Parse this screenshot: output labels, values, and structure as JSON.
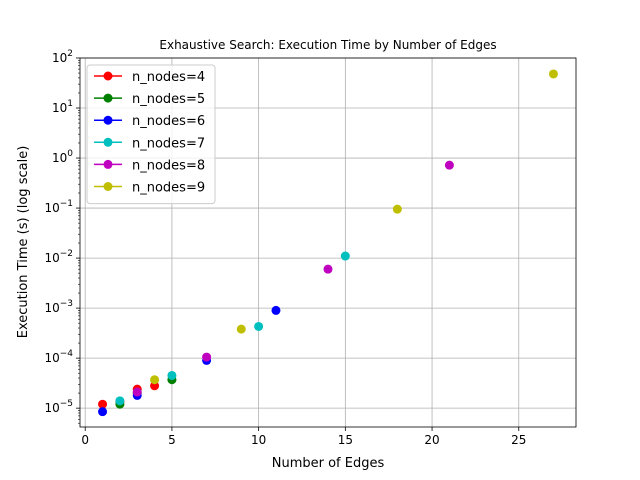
{
  "chart_data": {
    "type": "scatter",
    "title": "Exhaustive Search: Execution Time by Number of Edges",
    "xlabel": "Number of Edges",
    "ylabel": "Execution Time (s) (log scale)",
    "xlim": [
      -0.3,
      28.3
    ],
    "ylim": [
      4.2e-06,
      100.0
    ],
    "yscale": "log",
    "grid": true,
    "legend_position": "upper left",
    "xticks": [
      0,
      5,
      10,
      15,
      20,
      25
    ],
    "xtick_labels": [
      "0",
      "5",
      "10",
      "15",
      "20",
      "25"
    ],
    "yticks": [
      1e-05,
      0.0001,
      0.001,
      0.01,
      0.1,
      1.0,
      10.0,
      100.0
    ],
    "ytick_labels": [
      {
        "base": "10",
        "exp": "−5"
      },
      {
        "base": "10",
        "exp": "−4"
      },
      {
        "base": "10",
        "exp": "−3"
      },
      {
        "base": "10",
        "exp": "−2"
      },
      {
        "base": "10",
        "exp": "−1"
      },
      {
        "base": "10",
        "exp": "0"
      },
      {
        "base": "10",
        "exp": "1"
      },
      {
        "base": "10",
        "exp": "2"
      }
    ],
    "series": [
      {
        "name": "n_nodes=4",
        "color": "#ff0000",
        "points": [
          [
            1,
            1.2e-05
          ],
          [
            2,
            1.35e-05
          ],
          [
            3,
            2.4e-05
          ],
          [
            4,
            2.8e-05
          ]
        ]
      },
      {
        "name": "n_nodes=5",
        "color": "#008000",
        "points": [
          [
            2,
            1.2e-05
          ],
          [
            3,
            2e-05
          ],
          [
            5,
            3.7e-05
          ]
        ]
      },
      {
        "name": "n_nodes=6",
        "color": "#0000ff",
        "points": [
          [
            1,
            8.5e-06
          ],
          [
            3,
            1.8e-05
          ],
          [
            7,
            9e-05
          ],
          [
            11,
            0.0009
          ]
        ]
      },
      {
        "name": "n_nodes=7",
        "color": "#00bfbf",
        "points": [
          [
            2,
            1.4e-05
          ],
          [
            5,
            4.5e-05
          ],
          [
            10,
            0.00043
          ],
          [
            15,
            0.011
          ]
        ]
      },
      {
        "name": "n_nodes=8",
        "color": "#bf00bf",
        "points": [
          [
            3,
            2.1e-05
          ],
          [
            7,
            0.000105
          ],
          [
            14,
            0.006
          ],
          [
            21,
            0.72
          ]
        ]
      },
      {
        "name": "n_nodes=9",
        "color": "#bfbf00",
        "points": [
          [
            4,
            3.7e-05
          ],
          [
            9,
            0.00038
          ],
          [
            18,
            0.095
          ],
          [
            27,
            48.0
          ]
        ]
      }
    ]
  }
}
